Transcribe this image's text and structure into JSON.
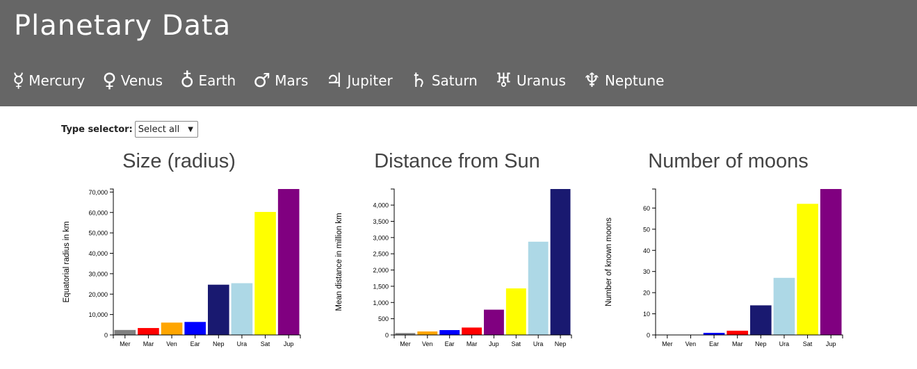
{
  "header": {
    "title": "Planetary Data",
    "nav": [
      {
        "symbol": "☿",
        "label": "Mercury"
      },
      {
        "symbol": "♀",
        "label": "Venus"
      },
      {
        "symbol": "♁",
        "label": "Earth"
      },
      {
        "symbol": "♂",
        "label": "Mars"
      },
      {
        "symbol": "♃",
        "label": "Jupiter"
      },
      {
        "symbol": "♄",
        "label": "Saturn"
      },
      {
        "symbol": "♅",
        "label": "Uranus"
      },
      {
        "symbol": "♆",
        "label": "Neptune"
      }
    ]
  },
  "selector": {
    "label": "Type selector:",
    "value": "Select all"
  },
  "colors": {
    "Mer": "#808080",
    "Ven": "#ffa500",
    "Ear": "#0000ff",
    "Mar": "#ff0000",
    "Jup": "#800080",
    "Sat": "#ffff00",
    "Ura": "#add8e6",
    "Nep": "#191970"
  },
  "chart_data": [
    {
      "type": "bar",
      "title": "Size (radius)",
      "ylabel": "Equatorial radius in km",
      "xlabel": "",
      "categories": [
        "Mer",
        "Mar",
        "Ven",
        "Ear",
        "Nep",
        "Ura",
        "Sat",
        "Jup"
      ],
      "values": [
        2440,
        3390,
        6052,
        6371,
        24622,
        25362,
        60268,
        71492
      ],
      "ylim": [
        0,
        71492
      ],
      "yticks": [
        0,
        10000,
        20000,
        30000,
        40000,
        50000,
        60000,
        70000
      ],
      "ytick_labels": [
        "0",
        "10,000",
        "20,000",
        "30,000",
        "40,000",
        "50,000",
        "60,000",
        "70,000"
      ]
    },
    {
      "type": "bar",
      "title": "Distance from Sun",
      "ylabel": "Mean distance in million km",
      "xlabel": "",
      "categories": [
        "Mer",
        "Ven",
        "Ear",
        "Mar",
        "Jup",
        "Sat",
        "Ura",
        "Nep"
      ],
      "values": [
        57.9,
        108.2,
        149.6,
        227.9,
        778.6,
        1433.5,
        2872.5,
        4495.1
      ],
      "ylim": [
        0,
        4495.1
      ],
      "yticks": [
        0,
        500,
        1000,
        1500,
        2000,
        2500,
        3000,
        3500,
        4000
      ],
      "ytick_labels": [
        "0",
        "500",
        "1,000",
        "1,500",
        "2,000",
        "2,500",
        "3,000",
        "3,500",
        "4,000"
      ]
    },
    {
      "type": "bar",
      "title": "Number of moons",
      "ylabel": "Number of known moons",
      "xlabel": "",
      "categories": [
        "Mer",
        "Ven",
        "Ear",
        "Mar",
        "Nep",
        "Ura",
        "Sat",
        "Jup"
      ],
      "values": [
        0,
        0,
        1,
        2,
        14,
        27,
        62,
        69
      ],
      "ylim": [
        0,
        69
      ],
      "yticks": [
        0,
        10,
        20,
        30,
        40,
        50,
        60
      ],
      "ytick_labels": [
        "0",
        "10",
        "20",
        "30",
        "40",
        "50",
        "60"
      ]
    }
  ]
}
